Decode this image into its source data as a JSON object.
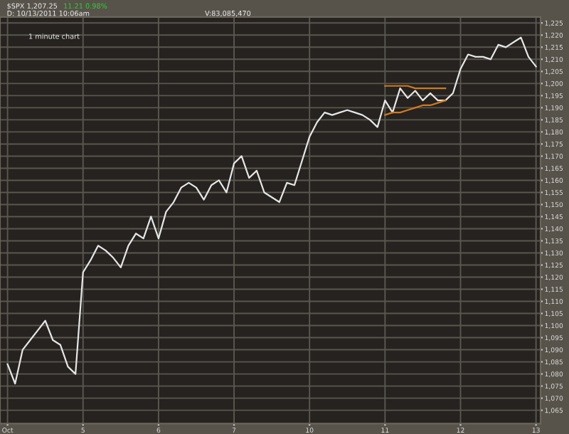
{
  "chart_data": {
    "type": "line",
    "title": "$SPX 1,207.25",
    "subtitle": "11.21 0.98%",
    "annotations": [
      "D: 10/13/2011 10:06am",
      "V:83,085,470",
      "1 minute chart"
    ],
    "categories": [
      "Oct",
      null,
      null,
      null,
      null,
      null,
      null,
      null,
      null,
      null,
      "5",
      null,
      null,
      null,
      null,
      null,
      null,
      null,
      null,
      null,
      "6",
      null,
      null,
      null,
      null,
      null,
      null,
      null,
      null,
      null,
      "7",
      null,
      null,
      null,
      null,
      null,
      null,
      null,
      null,
      null,
      "10",
      null,
      null,
      null,
      null,
      null,
      null,
      null,
      null,
      null,
      "11",
      null,
      null,
      null,
      null,
      null,
      null,
      null,
      null,
      null,
      "12",
      null,
      null,
      null,
      null,
      null,
      null,
      null,
      null,
      null,
      "13"
    ],
    "series": [
      {
        "color": "#e6e6e6",
        "values": [
          1084,
          1076,
          1090,
          1094,
          1098,
          1102,
          1094,
          1092,
          1083,
          1080,
          1122,
          1127,
          1133,
          1131,
          1128,
          1124,
          1133,
          1138,
          1136,
          1145,
          1136,
          1147,
          1151,
          1157,
          1159,
          1157,
          1152,
          1158,
          1160,
          1155,
          1167,
          1170,
          1161,
          1164,
          1155,
          1153,
          1151,
          1159,
          1158,
          1168,
          1178,
          1184,
          1188,
          1187,
          1188,
          1189,
          1188,
          1187,
          1185,
          1182,
          1193,
          1188,
          1198,
          1194,
          1197,
          1193,
          1196,
          1193,
          1193,
          1196,
          1206,
          1212,
          1211,
          1211,
          1210,
          1216,
          1215,
          1217,
          1219,
          1211,
          1207
        ]
      },
      {
        "color": "#d07a1e",
        "values": [
          null,
          null,
          null,
          null,
          null,
          null,
          null,
          null,
          null,
          null,
          null,
          null,
          null,
          null,
          null,
          null,
          null,
          null,
          null,
          null,
          null,
          null,
          null,
          null,
          null,
          null,
          null,
          null,
          null,
          null,
          null,
          null,
          null,
          null,
          null,
          null,
          null,
          null,
          null,
          null,
          null,
          null,
          null,
          null,
          null,
          null,
          null,
          null,
          null,
          null,
          1199,
          1199,
          1199,
          1199,
          1198,
          1198,
          1198,
          1198,
          1198,
          null,
          null,
          null,
          null,
          null,
          null,
          null,
          null,
          null,
          null,
          null,
          null
        ]
      },
      {
        "color": "#d07a1e",
        "values": [
          null,
          null,
          null,
          null,
          null,
          null,
          null,
          null,
          null,
          null,
          null,
          null,
          null,
          null,
          null,
          null,
          null,
          null,
          null,
          null,
          null,
          null,
          null,
          null,
          null,
          null,
          null,
          null,
          null,
          null,
          null,
          null,
          null,
          null,
          null,
          null,
          null,
          null,
          null,
          null,
          null,
          null,
          null,
          null,
          null,
          null,
          null,
          null,
          null,
          null,
          1187,
          1188,
          1188,
          1189,
          1190,
          1191,
          1191,
          1192,
          1193,
          null,
          null,
          null,
          null,
          null,
          null,
          null,
          null,
          null,
          null,
          null,
          null
        ]
      }
    ],
    "ylim": [
      1059.5,
      1227.5
    ],
    "yticks": [
      {
        "value": 1065,
        "label": "1,065"
      },
      {
        "value": 1070,
        "label": "1,070"
      },
      {
        "value": 1075,
        "label": "1,075"
      },
      {
        "value": 1080,
        "label": "1,080"
      },
      {
        "value": 1085,
        "label": "1,085"
      },
      {
        "value": 1090,
        "label": "1,090"
      },
      {
        "value": 1095,
        "label": "1,095"
      },
      {
        "value": 1100,
        "label": "1,100"
      },
      {
        "value": 1105,
        "label": "1,105"
      },
      {
        "value": 1110,
        "label": "1,110"
      },
      {
        "value": 1115,
        "label": "1,115"
      },
      {
        "value": 1120,
        "label": "1,120"
      },
      {
        "value": 1125,
        "label": "1,125"
      },
      {
        "value": 1130,
        "label": "1,130"
      },
      {
        "value": 1135,
        "label": "1,135"
      },
      {
        "value": 1140,
        "label": "1,140"
      },
      {
        "value": 1145,
        "label": "1,145"
      },
      {
        "value": 1150,
        "label": "1,150"
      },
      {
        "value": 1155,
        "label": "1,155"
      },
      {
        "value": 1160,
        "label": "1,160"
      },
      {
        "value": 1165,
        "label": "1,165"
      },
      {
        "value": 1170,
        "label": "1,170"
      },
      {
        "value": 1175,
        "label": "1,175"
      },
      {
        "value": 1180,
        "label": "1,180"
      },
      {
        "value": 1185,
        "label": "1,185"
      },
      {
        "value": 1190,
        "label": "1,190"
      },
      {
        "value": 1195,
        "label": "1,195"
      },
      {
        "value": 1200,
        "label": "1,200"
      },
      {
        "value": 1205,
        "label": "1,205"
      },
      {
        "value": 1210,
        "label": "1,210"
      },
      {
        "value": 1215,
        "label": "1,215"
      },
      {
        "value": 1220,
        "label": "1,220"
      },
      {
        "value": 1225,
        "label": "1,225"
      }
    ],
    "grid": true,
    "marker": "none",
    "line_style": "solid"
  }
}
